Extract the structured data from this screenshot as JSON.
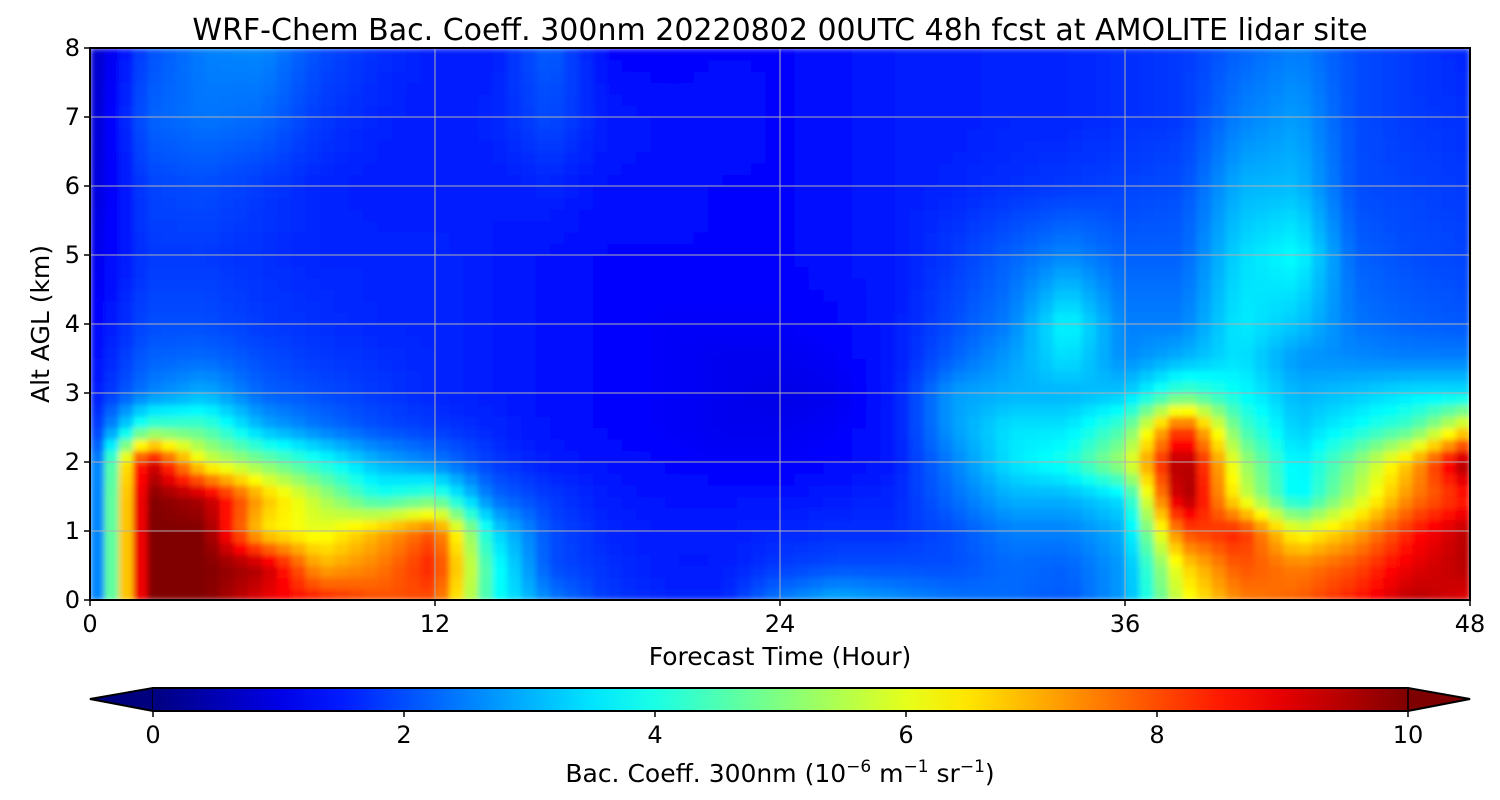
{
  "chart_data": {
    "type": "heatmap",
    "title": "WRF-Chem Bac. Coeff. 300nm  20220802 00UTC 48h fcst at AMOLITE lidar site",
    "xlabel": "Forecast Time (Hour)",
    "ylabel": "Alt AGL (km)",
    "xlim": [
      0,
      48
    ],
    "ylim": [
      0,
      8
    ],
    "xticks": [
      "0",
      "12",
      "24",
      "36",
      "48"
    ],
    "yticks": [
      "0",
      "1",
      "2",
      "3",
      "4",
      "5",
      "6",
      "7",
      "8"
    ],
    "grid": true,
    "colormap": "jet",
    "colorbar": {
      "label_main": "Bac. Coeff. 300nm  (10",
      "label_exp1": "−6",
      "label_mid": " m",
      "label_exp2": "−1",
      "label_mid2": " sr",
      "label_exp3": "−1",
      "label_end": ")",
      "vmin": 0,
      "vmax": 10,
      "ticks": [
        "0",
        "2",
        "4",
        "6",
        "8",
        "10"
      ],
      "extend": "both"
    },
    "x_hours": [
      0,
      2,
      4,
      6,
      8,
      10,
      12,
      14,
      16,
      18,
      20,
      22,
      24,
      26,
      28,
      30,
      32,
      34,
      36,
      38,
      40,
      42,
      44,
      46,
      48
    ],
    "y_km": [
      0,
      0.5,
      1,
      1.5,
      2,
      2.5,
      3,
      3.5,
      4,
      5,
      6,
      7,
      8
    ],
    "values": [
      [
        1.5,
        10,
        10,
        9,
        8.5,
        8,
        8,
        4,
        2.5,
        1.8,
        1.6,
        1.6,
        2.5,
        3,
        2.7,
        2.4,
        2.3,
        2.1,
        2.8,
        6,
        7.5,
        7.8,
        8.5,
        9.5,
        9
      ],
      [
        1.5,
        10,
        10,
        9.5,
        7,
        7.5,
        8.5,
        4,
        2,
        1.7,
        1.5,
        1.5,
        1.8,
        2,
        2,
        2,
        2.3,
        2.2,
        2.8,
        6.5,
        8,
        7.5,
        8,
        9,
        9.5
      ],
      [
        1.5,
        10,
        10,
        6.5,
        6,
        7,
        8,
        3.5,
        2,
        1.6,
        1.5,
        1.5,
        1.6,
        1.7,
        1.7,
        2,
        2.5,
        2.5,
        3,
        8,
        8.5,
        6,
        7,
        8.5,
        9.5
      ],
      [
        1.5,
        10,
        9.5,
        7,
        5.5,
        4,
        4.5,
        2.3,
        1.8,
        1.5,
        1.4,
        1.4,
        1.4,
        1.5,
        1.6,
        2.3,
        3,
        3,
        3.5,
        10,
        6,
        3.5,
        5.5,
        7.5,
        8.5
      ],
      [
        1.6,
        9.5,
        6,
        5,
        4,
        3,
        2.5,
        1.8,
        1.5,
        1.4,
        1.3,
        1.2,
        1.2,
        1.3,
        1.5,
        2.5,
        3.5,
        4,
        5.5,
        10,
        5.5,
        3.5,
        5,
        7,
        10
      ],
      [
        1.5,
        4.5,
        4.5,
        3,
        2.4,
        2,
        1.8,
        1.6,
        1.4,
        1.3,
        1.2,
        1.1,
        1.1,
        1.2,
        1.5,
        2.8,
        3.5,
        3.5,
        4.5,
        8.5,
        4.5,
        3.2,
        3.8,
        4.5,
        6.5
      ],
      [
        1.4,
        2.5,
        3,
        2.2,
        2,
        1.8,
        1.6,
        1.5,
        1.4,
        1.3,
        1.2,
        1.1,
        1,
        1.1,
        1.5,
        2.8,
        3,
        3,
        3.2,
        4.5,
        3.8,
        3,
        3.2,
        3.5,
        3.5
      ],
      [
        1.3,
        2.2,
        2.3,
        2,
        1.8,
        1.7,
        1.6,
        1.5,
        1.4,
        1.3,
        1.2,
        1.1,
        1.1,
        1.2,
        1.5,
        2.2,
        2.8,
        3.5,
        2.6,
        3,
        3.5,
        2.7,
        2.6,
        2.5,
        2.5
      ],
      [
        1.2,
        2,
        2,
        1.8,
        1.7,
        1.6,
        1.6,
        1.5,
        1.4,
        1.3,
        1.2,
        1.2,
        1.2,
        1.3,
        1.5,
        2,
        2.5,
        3.8,
        2.5,
        2.5,
        3.6,
        3.2,
        2.4,
        2.2,
        2.1
      ],
      [
        1,
        1.8,
        1.8,
        1.7,
        1.6,
        1.6,
        1.6,
        1.5,
        1.4,
        1.3,
        1.3,
        1.3,
        1.3,
        1.4,
        1.5,
        1.8,
        2.2,
        2.6,
        2.2,
        2.2,
        3.4,
        3.8,
        2.2,
        2,
        1.9
      ],
      [
        0.8,
        1.9,
        2,
        1.8,
        1.6,
        1.5,
        1.5,
        1.5,
        1.6,
        1.4,
        1.4,
        1.3,
        1.3,
        1.4,
        1.5,
        1.6,
        1.7,
        1.8,
        1.9,
        2,
        3,
        3.1,
        2,
        1.9,
        1.8
      ],
      [
        0.7,
        2.2,
        2.4,
        2.3,
        1.8,
        1.6,
        1.5,
        1.6,
        2,
        1.5,
        1.4,
        1.4,
        1.3,
        1.4,
        1.5,
        1.5,
        1.6,
        1.6,
        1.7,
        1.8,
        2.5,
        2.8,
        2,
        1.8,
        1.7
      ],
      [
        0.6,
        2,
        2.5,
        2.6,
        2,
        1.7,
        1.5,
        1.5,
        2.2,
        1.3,
        1.2,
        1.3,
        1.3,
        1.4,
        1.5,
        1.5,
        1.6,
        1.6,
        1.7,
        1.8,
        2.2,
        2.5,
        2,
        1.8,
        1.6
      ]
    ]
  }
}
